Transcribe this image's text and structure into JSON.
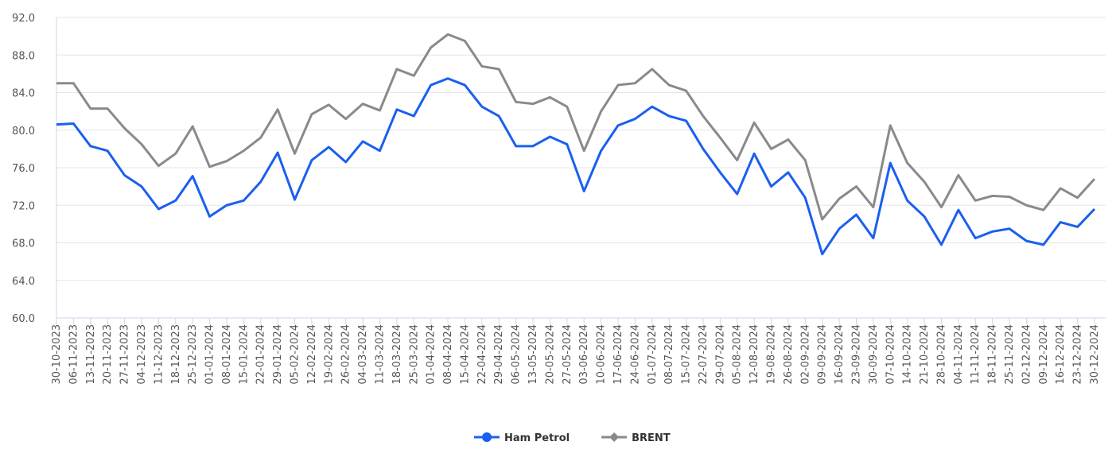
{
  "chart_data": {
    "type": "line",
    "categories": [
      "30-10-2023",
      "06-11-2023",
      "13-11-2023",
      "20-11-2023",
      "27-11-2023",
      "04-12-2023",
      "11-12-2023",
      "18-12-2023",
      "25-12-2023",
      "01-01-2024",
      "08-01-2024",
      "15-01-2024",
      "22-01-2024",
      "29-01-2024",
      "05-02-2024",
      "12-02-2024",
      "19-02-2024",
      "26-02-2024",
      "04-03-2024",
      "11-03-2024",
      "18-03-2024",
      "25-03-2024",
      "01-04-2024",
      "08-04-2024",
      "15-04-2024",
      "22-04-2024",
      "29-04-2024",
      "06-05-2024",
      "13-05-2024",
      "20-05-2024",
      "27-05-2024",
      "03-06-2024",
      "10-06-2024",
      "17-06-2024",
      "24-06-2024",
      "01-07-2024",
      "08-07-2024",
      "15-07-2024",
      "22-07-2024",
      "29-07-2024",
      "05-08-2024",
      "12-08-2024",
      "19-08-2024",
      "26-08-2024",
      "02-09-2024",
      "09-09-2024",
      "16-09-2024",
      "23-09-2024",
      "30-09-2024",
      "07-10-2024",
      "14-10-2024",
      "21-10-2024",
      "28-10-2024",
      "04-11-2024",
      "11-11-2024",
      "18-11-2024",
      "25-11-2024",
      "02-12-2024",
      "09-12-2024",
      "16-12-2024",
      "23-12-2024",
      "30-12-2024"
    ],
    "series": [
      {
        "name": "Ham Petrol",
        "color": "#1a5ff0",
        "values": [
          80.6,
          80.7,
          78.3,
          77.8,
          75.2,
          74.0,
          71.6,
          72.5,
          75.1,
          70.8,
          72.0,
          72.5,
          74.5,
          77.6,
          72.6,
          76.8,
          78.2,
          76.6,
          78.8,
          77.8,
          82.2,
          81.5,
          84.8,
          85.5,
          84.8,
          82.5,
          81.5,
          78.3,
          78.3,
          79.3,
          78.5,
          73.5,
          77.8,
          80.5,
          81.2,
          82.5,
          81.5,
          81.0,
          78.0,
          75.5,
          73.2,
          77.5,
          74.0,
          75.5,
          72.8,
          66.8,
          69.5,
          71.0,
          68.5,
          76.5,
          72.5,
          70.8,
          67.8,
          71.5,
          68.5,
          69.2,
          69.5,
          68.2,
          67.8,
          70.2,
          69.7,
          71.6
        ]
      },
      {
        "name": "BRENT",
        "color": "#8a8a8a",
        "values": [
          85.0,
          85.0,
          82.3,
          82.3,
          80.2,
          78.5,
          76.2,
          77.5,
          80.4,
          76.1,
          76.7,
          77.8,
          79.2,
          82.2,
          77.5,
          81.7,
          82.7,
          81.2,
          82.8,
          82.1,
          86.5,
          85.8,
          88.8,
          90.2,
          89.5,
          86.8,
          86.5,
          83.0,
          82.8,
          83.5,
          82.5,
          77.8,
          82.0,
          84.8,
          85.0,
          86.5,
          84.8,
          84.2,
          81.5,
          79.2,
          76.8,
          80.8,
          78.0,
          79.0,
          76.8,
          70.5,
          72.7,
          74.0,
          71.8,
          80.5,
          76.5,
          74.5,
          71.8,
          75.2,
          72.5,
          73.0,
          72.9,
          72.0,
          71.5,
          73.8,
          72.8,
          74.8
        ]
      }
    ],
    "ylim": [
      60,
      92
    ],
    "yticks": [
      {
        "value": 60,
        "label": "60.0"
      },
      {
        "value": 64,
        "label": "64.0"
      },
      {
        "value": 68,
        "label": "68.0"
      },
      {
        "value": 72,
        "label": "72.0"
      },
      {
        "value": 76,
        "label": "76.0"
      },
      {
        "value": 80,
        "label": "80.0"
      },
      {
        "value": 84,
        "label": "84.0"
      },
      {
        "value": 88,
        "label": "88.0"
      },
      {
        "value": 92,
        "label": "92.0"
      }
    ],
    "grid": true,
    "legend": "bottom"
  }
}
